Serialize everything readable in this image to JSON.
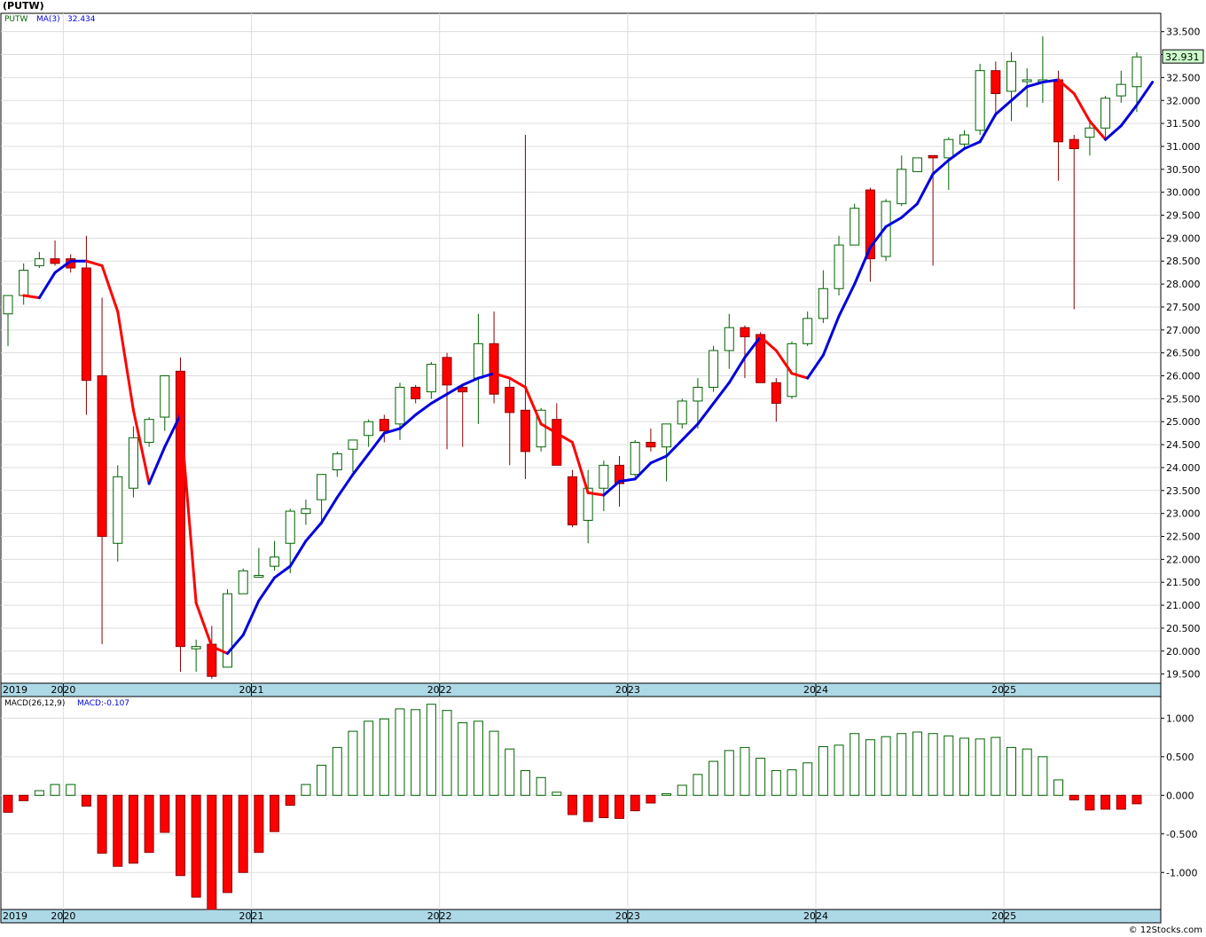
{
  "title": "(PUTW)",
  "footer": "© 12Stocks.com",
  "colors": {
    "up": "#006400",
    "down": "#ff0000",
    "ma_up": "#0000dd",
    "ma_down": "#ff0000",
    "axis_band": "#add8e6",
    "grid": "#dddddd",
    "last_price_bg": "#ccffcc"
  },
  "chart_data": [
    {
      "type": "candlestick",
      "symbol": "PUTW",
      "legend": {
        "symbol": "PUTW",
        "ma_label": "MA(3)",
        "ma_value": "32.434"
      },
      "last_price_label": "32.931",
      "ylim": [
        19.3,
        33.9
      ],
      "y_ticks": [
        "19.500",
        "20.000",
        "20.500",
        "21.000",
        "21.500",
        "22.000",
        "22.500",
        "23.000",
        "23.500",
        "24.000",
        "24.500",
        "25.000",
        "25.500",
        "26.000",
        "26.500",
        "27.000",
        "27.500",
        "28.000",
        "28.500",
        "29.000",
        "29.500",
        "30.000",
        "30.500",
        "31.000",
        "31.500",
        "32.000",
        "32.500",
        "33.000",
        "33.500"
      ],
      "x_labels": [
        {
          "label": "2019",
          "month": 0
        },
        {
          "label": "2020",
          "month": 4
        },
        {
          "label": "2021",
          "month": 16
        },
        {
          "label": "2022",
          "month": 28
        },
        {
          "label": "2023",
          "month": 40
        },
        {
          "label": "2024",
          "month": 52
        },
        {
          "label": "2025",
          "month": 64
        }
      ],
      "candles": [
        [
          27.35,
          27.75,
          26.65,
          27.75
        ],
        [
          27.75,
          28.45,
          27.55,
          28.3
        ],
        [
          28.4,
          28.7,
          28.35,
          28.55
        ],
        [
          28.55,
          28.95,
          28.4,
          28.45
        ],
        [
          28.55,
          28.65,
          28.25,
          28.35
        ],
        [
          28.35,
          29.05,
          25.15,
          25.9
        ],
        [
          26.0,
          27.7,
          20.15,
          22.5
        ],
        [
          22.35,
          24.05,
          21.95,
          23.8
        ],
        [
          23.55,
          24.9,
          23.35,
          24.65
        ],
        [
          24.55,
          25.1,
          24.45,
          25.05
        ],
        [
          25.1,
          26.0,
          24.8,
          26.0
        ],
        [
          26.1,
          26.4,
          19.55,
          20.1
        ],
        [
          20.05,
          20.25,
          19.55,
          20.1
        ],
        [
          20.15,
          20.55,
          19.4,
          19.45
        ],
        [
          19.65,
          21.35,
          19.65,
          21.25
        ],
        [
          21.25,
          21.8,
          21.25,
          21.75
        ],
        [
          21.65,
          22.25,
          21.6,
          21.65
        ],
        [
          21.85,
          22.4,
          21.75,
          22.05
        ],
        [
          22.35,
          23.1,
          21.7,
          23.05
        ],
        [
          23.0,
          23.3,
          22.75,
          23.1
        ],
        [
          23.3,
          23.85,
          22.75,
          23.85
        ],
        [
          23.95,
          24.35,
          23.8,
          24.3
        ],
        [
          24.4,
          24.6,
          23.9,
          24.6
        ],
        [
          24.7,
          25.05,
          24.45,
          25.0
        ],
        [
          25.05,
          25.15,
          24.55,
          24.8
        ],
        [
          24.95,
          25.85,
          24.6,
          25.75
        ],
        [
          25.75,
          25.8,
          25.4,
          25.5
        ],
        [
          25.65,
          26.3,
          25.5,
          26.25
        ],
        [
          26.4,
          26.5,
          24.4,
          25.8
        ],
        [
          25.75,
          25.8,
          24.45,
          25.65
        ],
        [
          25.95,
          27.35,
          24.95,
          26.7
        ],
        [
          26.7,
          27.4,
          25.4,
          25.6
        ],
        [
          25.75,
          25.95,
          24.05,
          25.2
        ],
        [
          25.25,
          31.25,
          23.75,
          24.35
        ],
        [
          24.45,
          25.3,
          24.35,
          25.25
        ],
        [
          25.05,
          25.4,
          24.1,
          24.05
        ],
        [
          23.8,
          23.95,
          22.7,
          22.75
        ],
        [
          22.85,
          23.95,
          22.35,
          23.55
        ],
        [
          23.55,
          24.15,
          23.05,
          24.05
        ],
        [
          24.05,
          24.25,
          23.15,
          23.65
        ],
        [
          23.85,
          24.6,
          23.8,
          24.55
        ],
        [
          24.55,
          24.85,
          24.35,
          24.45
        ],
        [
          24.45,
          24.95,
          23.7,
          24.95
        ],
        [
          24.95,
          25.5,
          24.85,
          25.45
        ],
        [
          25.45,
          25.95,
          24.85,
          25.75
        ],
        [
          25.75,
          26.65,
          25.65,
          26.55
        ],
        [
          26.55,
          27.35,
          26.15,
          27.05
        ],
        [
          27.05,
          27.1,
          25.95,
          26.85
        ],
        [
          26.9,
          26.95,
          25.85,
          25.85
        ],
        [
          25.85,
          25.95,
          25.0,
          25.4
        ],
        [
          25.55,
          26.75,
          25.5,
          26.7
        ],
        [
          26.7,
          27.4,
          26.65,
          27.25
        ],
        [
          27.25,
          28.3,
          27.15,
          27.9
        ],
        [
          27.9,
          29.05,
          27.75,
          28.85
        ],
        [
          28.85,
          29.75,
          28.85,
          29.65
        ],
        [
          30.05,
          30.1,
          28.05,
          28.55
        ],
        [
          28.6,
          29.85,
          28.5,
          29.8
        ],
        [
          29.75,
          30.8,
          29.7,
          30.5
        ],
        [
          30.45,
          30.65,
          30.45,
          30.75
        ],
        [
          30.8,
          30.8,
          28.4,
          30.75
        ],
        [
          30.75,
          31.2,
          30.05,
          31.15
        ],
        [
          31.05,
          31.35,
          30.95,
          31.25
        ],
        [
          31.35,
          32.8,
          31.25,
          32.65
        ],
        [
          32.65,
          32.85,
          31.65,
          32.15
        ],
        [
          32.2,
          33.05,
          31.55,
          32.85
        ],
        [
          32.45,
          32.7,
          31.85,
          32.45
        ],
        [
          32.45,
          33.4,
          31.95,
          32.45
        ],
        [
          32.45,
          32.65,
          30.25,
          31.1
        ],
        [
          31.15,
          31.25,
          27.45,
          30.95
        ],
        [
          31.2,
          31.55,
          30.8,
          31.4
        ],
        [
          31.4,
          32.1,
          31.2,
          32.05
        ],
        [
          32.1,
          32.65,
          31.95,
          32.35
        ],
        [
          32.3,
          33.05,
          31.75,
          32.95
        ]
      ],
      "ma3": [
        27.75,
        27.7,
        28.25,
        28.5,
        28.5,
        28.4,
        27.4,
        25.25,
        23.65,
        24.45,
        25.15,
        21.05,
        20.1,
        19.95,
        20.35,
        21.1,
        21.6,
        21.85,
        22.4,
        22.8,
        23.35,
        23.85,
        24.3,
        24.75,
        24.85,
        25.15,
        25.4,
        25.6,
        25.8,
        25.95,
        26.05,
        25.95,
        25.75,
        24.95,
        24.75,
        24.55,
        23.45,
        23.4,
        23.7,
        23.75,
        24.1,
        24.25,
        24.6,
        24.95,
        25.4,
        25.85,
        26.4,
        26.85,
        26.55,
        26.05,
        25.95,
        26.45,
        27.3,
        28.0,
        28.8,
        29.25,
        29.45,
        29.75,
        30.4,
        30.7,
        30.95,
        31.1,
        31.7,
        32.0,
        32.3,
        32.4,
        32.45,
        32.15,
        31.55,
        31.15,
        31.45,
        31.9,
        32.4
      ],
      "ma3_start": 1
    },
    {
      "type": "bar",
      "legend": {
        "label": "MACD(26,12,9)",
        "macd_label": "MACD:-0.107"
      },
      "ylim": [
        -1.48,
        1.28
      ],
      "y_ticks": [
        "1.000",
        "0.500",
        "0.000",
        "-0.500",
        "-1.000"
      ],
      "values": [
        -0.22,
        -0.07,
        0.06,
        0.14,
        0.14,
        -0.14,
        -0.75,
        -0.92,
        -0.88,
        -0.74,
        -0.48,
        -1.04,
        -1.32,
        -1.48,
        -1.26,
        -1.0,
        -0.74,
        -0.47,
        -0.13,
        0.14,
        0.39,
        0.62,
        0.83,
        0.96,
        0.99,
        1.12,
        1.11,
        1.18,
        1.1,
        0.94,
        0.96,
        0.83,
        0.6,
        0.32,
        0.23,
        0.04,
        -0.25,
        -0.34,
        -0.29,
        -0.3,
        -0.2,
        -0.1,
        0.02,
        0.13,
        0.27,
        0.44,
        0.58,
        0.62,
        0.48,
        0.32,
        0.33,
        0.42,
        0.63,
        0.65,
        0.8,
        0.72,
        0.76,
        0.8,
        0.82,
        0.8,
        0.77,
        0.74,
        0.73,
        0.75,
        0.62,
        0.6,
        0.5,
        0.2,
        -0.06,
        -0.19,
        -0.18,
        -0.18,
        -0.11
      ]
    }
  ]
}
